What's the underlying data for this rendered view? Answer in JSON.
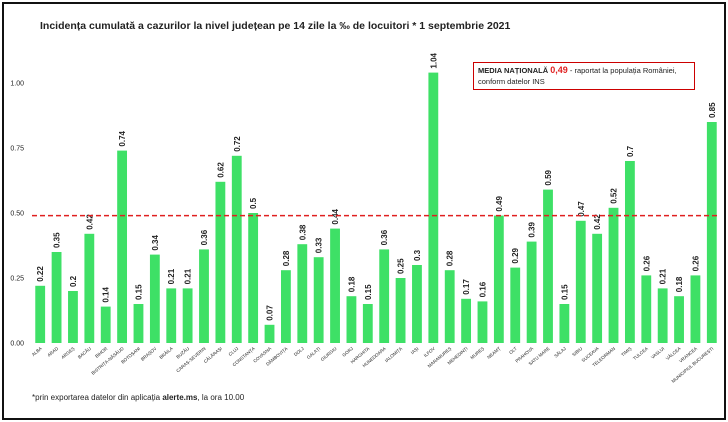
{
  "chart_data": {
    "type": "bar",
    "title": "Incidența cumulată a cazurilor la nivel județean pe 14 zile la ‰ de locuitori * 1 septembrie 2021",
    "categories": [
      "ALBA",
      "ARAD",
      "ARGEȘ",
      "BACĂU",
      "BIHOR",
      "BISTRIȚA-NĂSĂUD",
      "BOTOȘANI",
      "BRAȘOV",
      "BRĂILA",
      "BUZĂU",
      "CARAȘ-SEVERIN",
      "CĂLĂRAȘI",
      "CLUJ",
      "CONSTANȚA",
      "COVASNA",
      "DÂMBOVIȚA",
      "DOLJ",
      "GALAȚI",
      "GIURGIU",
      "GORJ",
      "HARGHITA",
      "HUNEDOARA",
      "IALOMIȚA",
      "IAȘI",
      "ILFOV",
      "MARAMUREȘ",
      "MEHEDINȚI",
      "MUREȘ",
      "NEAMȚ",
      "OLT",
      "PRAHOVA",
      "SATU MARE",
      "SĂLAJ",
      "SIBIU",
      "SUCEAVA",
      "TELEORMAN",
      "TIMIȘ",
      "TULCEA",
      "VASLUI",
      "VÂLCEA",
      "VRANCEA",
      "MUNICIPIUL BUCUREȘTI"
    ],
    "values": [
      0.22,
      0.35,
      0.2,
      0.42,
      0.14,
      0.74,
      0.15,
      0.34,
      0.21,
      0.21,
      0.36,
      0.62,
      0.72,
      0.5,
      0.07,
      0.28,
      0.38,
      0.33,
      0.44,
      0.18,
      0.15,
      0.36,
      0.25,
      0.3,
      1.04,
      0.28,
      0.17,
      0.16,
      0.49,
      0.29,
      0.39,
      0.59,
      0.15,
      0.47,
      0.42,
      0.52,
      0.7,
      0.26,
      0.21,
      0.18,
      0.26,
      0.85
    ],
    "color": "#3ee066",
    "ylim": [
      0,
      1.08
    ],
    "yticks": [
      {
        "value": 0,
        "label": "0.00"
      },
      {
        "value": 0.25,
        "label": "0.25"
      },
      {
        "value": 0.5,
        "label": "0.50"
      },
      {
        "value": 0.75,
        "label": "0.75"
      },
      {
        "value": 1,
        "label": "1.00"
      }
    ],
    "grid": false,
    "reference_line": {
      "value": 0.49,
      "color": "#e02020"
    },
    "annotation": {
      "title": "MEDIA NAȚIONALĂ",
      "value": "0,49",
      "text": "- raportat la populația României, conform datelor INS"
    },
    "footnote": [
      "*prin exportarea datelor din aplicația ",
      "alerte.ms",
      ", la ora 10.00"
    ]
  }
}
